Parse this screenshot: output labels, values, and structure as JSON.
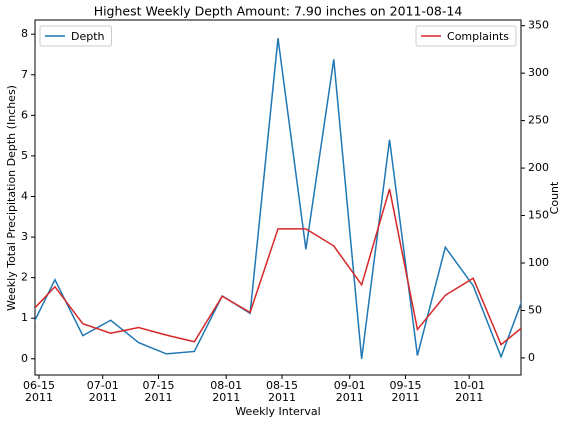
{
  "chart_data": {
    "type": "line",
    "title": "Highest Weekly Depth Amount: 7.90 inches on 2011-08-14",
    "xlabel": "Weekly Interval",
    "ylabel": "Weekly Total Precipitation Depth (Inches)",
    "y2label": "Count",
    "x": [
      "2011-06-12",
      "2011-06-19",
      "2011-06-26",
      "2011-07-03",
      "2011-07-10",
      "2011-07-17",
      "2011-07-24",
      "2011-07-31",
      "2011-08-07",
      "2011-08-14",
      "2011-08-21",
      "2011-08-28",
      "2011-09-04",
      "2011-09-11",
      "2011-09-18",
      "2011-09-25",
      "2011-10-02",
      "2011-10-09",
      "2011-10-16"
    ],
    "series": [
      {
        "name": "Depth",
        "color": "#1f77b4",
        "axis": "y",
        "legend": "upper left",
        "values": [
          0.55,
          1.95,
          0.57,
          0.95,
          0.4,
          0.12,
          0.18,
          1.55,
          1.12,
          7.9,
          2.7,
          7.38,
          0.0,
          5.4,
          0.08,
          2.75,
          1.8,
          0.05,
          1.89
        ]
      },
      {
        "name": "Complaints",
        "color": "#d62728",
        "axis": "y2",
        "legend": "upper right",
        "values": [
          44,
          75,
          36,
          26,
          32,
          24,
          17,
          65,
          48,
          136,
          136,
          118,
          77,
          178,
          30,
          66,
          84,
          14,
          38
        ]
      }
    ],
    "xlim": [
      "2011-06-14",
      "2011-10-14"
    ],
    "xticks": [
      {
        "value": "2011-06-15",
        "label": "06-15\n2011"
      },
      {
        "value": "2011-07-01",
        "label": "07-01\n2011"
      },
      {
        "value": "2011-07-15",
        "label": "07-15\n2011"
      },
      {
        "value": "2011-08-01",
        "label": "08-01\n2011"
      },
      {
        "value": "2011-08-15",
        "label": "08-15\n2011"
      },
      {
        "value": "2011-09-01",
        "label": "09-01\n2011"
      },
      {
        "value": "2011-09-15",
        "label": "09-15\n2011"
      },
      {
        "value": "2011-10-01",
        "label": "10-01\n2011"
      }
    ],
    "ylim": [
      -0.4,
      8.35
    ],
    "yticks": [
      0,
      1,
      2,
      3,
      4,
      5,
      6,
      7,
      8
    ],
    "y2lim": [
      -18,
      356
    ],
    "y2ticks": [
      0,
      50,
      100,
      150,
      200,
      250,
      300,
      350
    ]
  }
}
